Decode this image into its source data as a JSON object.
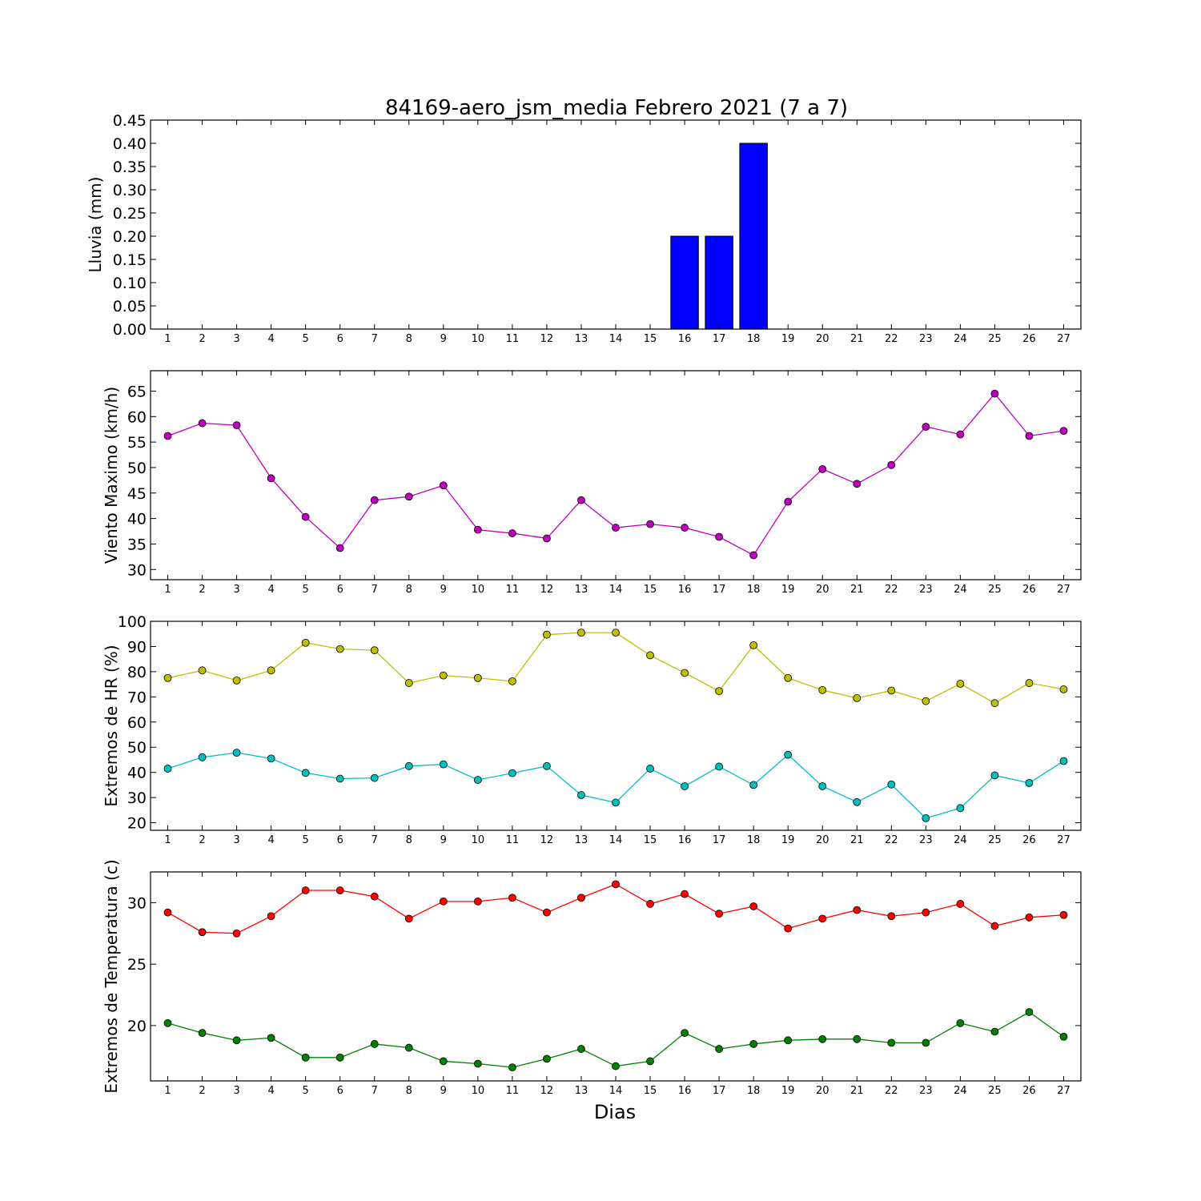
{
  "title": "84169-aero_jsm_media Febrero 2021  (7 a 7)",
  "xlabel": "Dias",
  "chart_data": [
    {
      "type": "bar",
      "id": "lluvia",
      "ylabel": "Lluvia (mm)",
      "x": [
        1,
        2,
        3,
        4,
        5,
        6,
        7,
        8,
        9,
        10,
        11,
        12,
        13,
        14,
        15,
        16,
        17,
        18,
        19,
        20,
        21,
        22,
        23,
        24,
        25,
        26,
        27
      ],
      "ylim": [
        0,
        0.45
      ],
      "yticks": [
        "0.00",
        "0.05",
        "0.10",
        "0.15",
        "0.20",
        "0.25",
        "0.30",
        "0.35",
        "0.40",
        "0.45"
      ],
      "series": [
        {
          "color": "#0000ff",
          "values": [
            0,
            0,
            0,
            0,
            0,
            0,
            0,
            0,
            0,
            0,
            0,
            0,
            0,
            0,
            0,
            0.2,
            0.2,
            0.4,
            0,
            0,
            0,
            0,
            0,
            0,
            0,
            0,
            0
          ]
        }
      ]
    },
    {
      "type": "line",
      "id": "viento",
      "ylabel": "Viento Maximo (km/h)",
      "x": [
        1,
        2,
        3,
        4,
        5,
        6,
        7,
        8,
        9,
        10,
        11,
        12,
        13,
        14,
        15,
        16,
        17,
        18,
        19,
        20,
        21,
        22,
        23,
        24,
        25,
        26,
        27
      ],
      "ylim": [
        28,
        69
      ],
      "yticks": [
        "30",
        "35",
        "40",
        "45",
        "50",
        "55",
        "60",
        "65"
      ],
      "series": [
        {
          "color": "#bf00bf",
          "values": [
            56.2,
            58.7,
            58.3,
            47.9,
            40.3,
            34.2,
            43.6,
            44.3,
            46.5,
            37.8,
            37.1,
            36.1,
            43.6,
            38.2,
            38.9,
            38.2,
            36.4,
            32.8,
            43.3,
            49.7,
            46.8,
            50.5,
            58.0,
            56.5,
            64.5,
            56.2,
            57.2
          ]
        }
      ]
    },
    {
      "type": "line",
      "id": "humedad",
      "ylabel": "Extremos de HR (%)",
      "x": [
        1,
        2,
        3,
        4,
        5,
        6,
        7,
        8,
        9,
        10,
        11,
        12,
        13,
        14,
        15,
        16,
        17,
        18,
        19,
        20,
        21,
        22,
        23,
        24,
        25,
        26,
        27
      ],
      "ylim": [
        17,
        100
      ],
      "yticks": [
        "20",
        "30",
        "40",
        "50",
        "60",
        "70",
        "80",
        "90",
        "100"
      ],
      "series": [
        {
          "color": "#bfbf00",
          "values": [
            77.5,
            80.5,
            76.5,
            80.5,
            91.5,
            89,
            88.5,
            75.5,
            78.5,
            77.5,
            76.2,
            94.7,
            95.5,
            95.5,
            86.5,
            79.5,
            72.3,
            90.5,
            77.5,
            72.7,
            69.5,
            72.5,
            68.3,
            75.2,
            67.5,
            75.5,
            73
          ]
        },
        {
          "color": "#00bfbf",
          "values": [
            41.5,
            46,
            47.8,
            45.5,
            39.8,
            37.5,
            37.8,
            42.5,
            43.2,
            37,
            39.7,
            42.5,
            31,
            28,
            41.5,
            34.5,
            42.3,
            35,
            47,
            34.5,
            28.2,
            35.2,
            21.8,
            25.8,
            38.8,
            35.8,
            44.5
          ]
        }
      ]
    },
    {
      "type": "line",
      "id": "temperatura",
      "ylabel": "Extremos de Temperatura (c)",
      "x": [
        1,
        2,
        3,
        4,
        5,
        6,
        7,
        8,
        9,
        10,
        11,
        12,
        13,
        14,
        15,
        16,
        17,
        18,
        19,
        20,
        21,
        22,
        23,
        24,
        25,
        26,
        27
      ],
      "ylim": [
        15.5,
        32.5
      ],
      "yticks": [
        "20",
        "25",
        "30"
      ],
      "series": [
        {
          "color": "#ff0000",
          "values": [
            29.2,
            27.6,
            27.5,
            28.9,
            31,
            31,
            30.5,
            28.7,
            30.1,
            30.1,
            30.4,
            29.2,
            30.4,
            31.5,
            29.9,
            30.7,
            29.1,
            29.7,
            27.9,
            28.7,
            29.4,
            28.9,
            29.2,
            29.9,
            28.1,
            28.8,
            29
          ]
        },
        {
          "color": "#008000",
          "values": [
            20.2,
            19.4,
            18.8,
            19,
            17.4,
            17.4,
            18.5,
            18.2,
            17.1,
            16.9,
            16.6,
            17.3,
            18.1,
            16.7,
            17.1,
            19.4,
            18.1,
            18.5,
            18.8,
            18.9,
            18.9,
            18.6,
            18.6,
            20.2,
            19.5,
            21.1,
            19.1
          ]
        }
      ]
    }
  ]
}
